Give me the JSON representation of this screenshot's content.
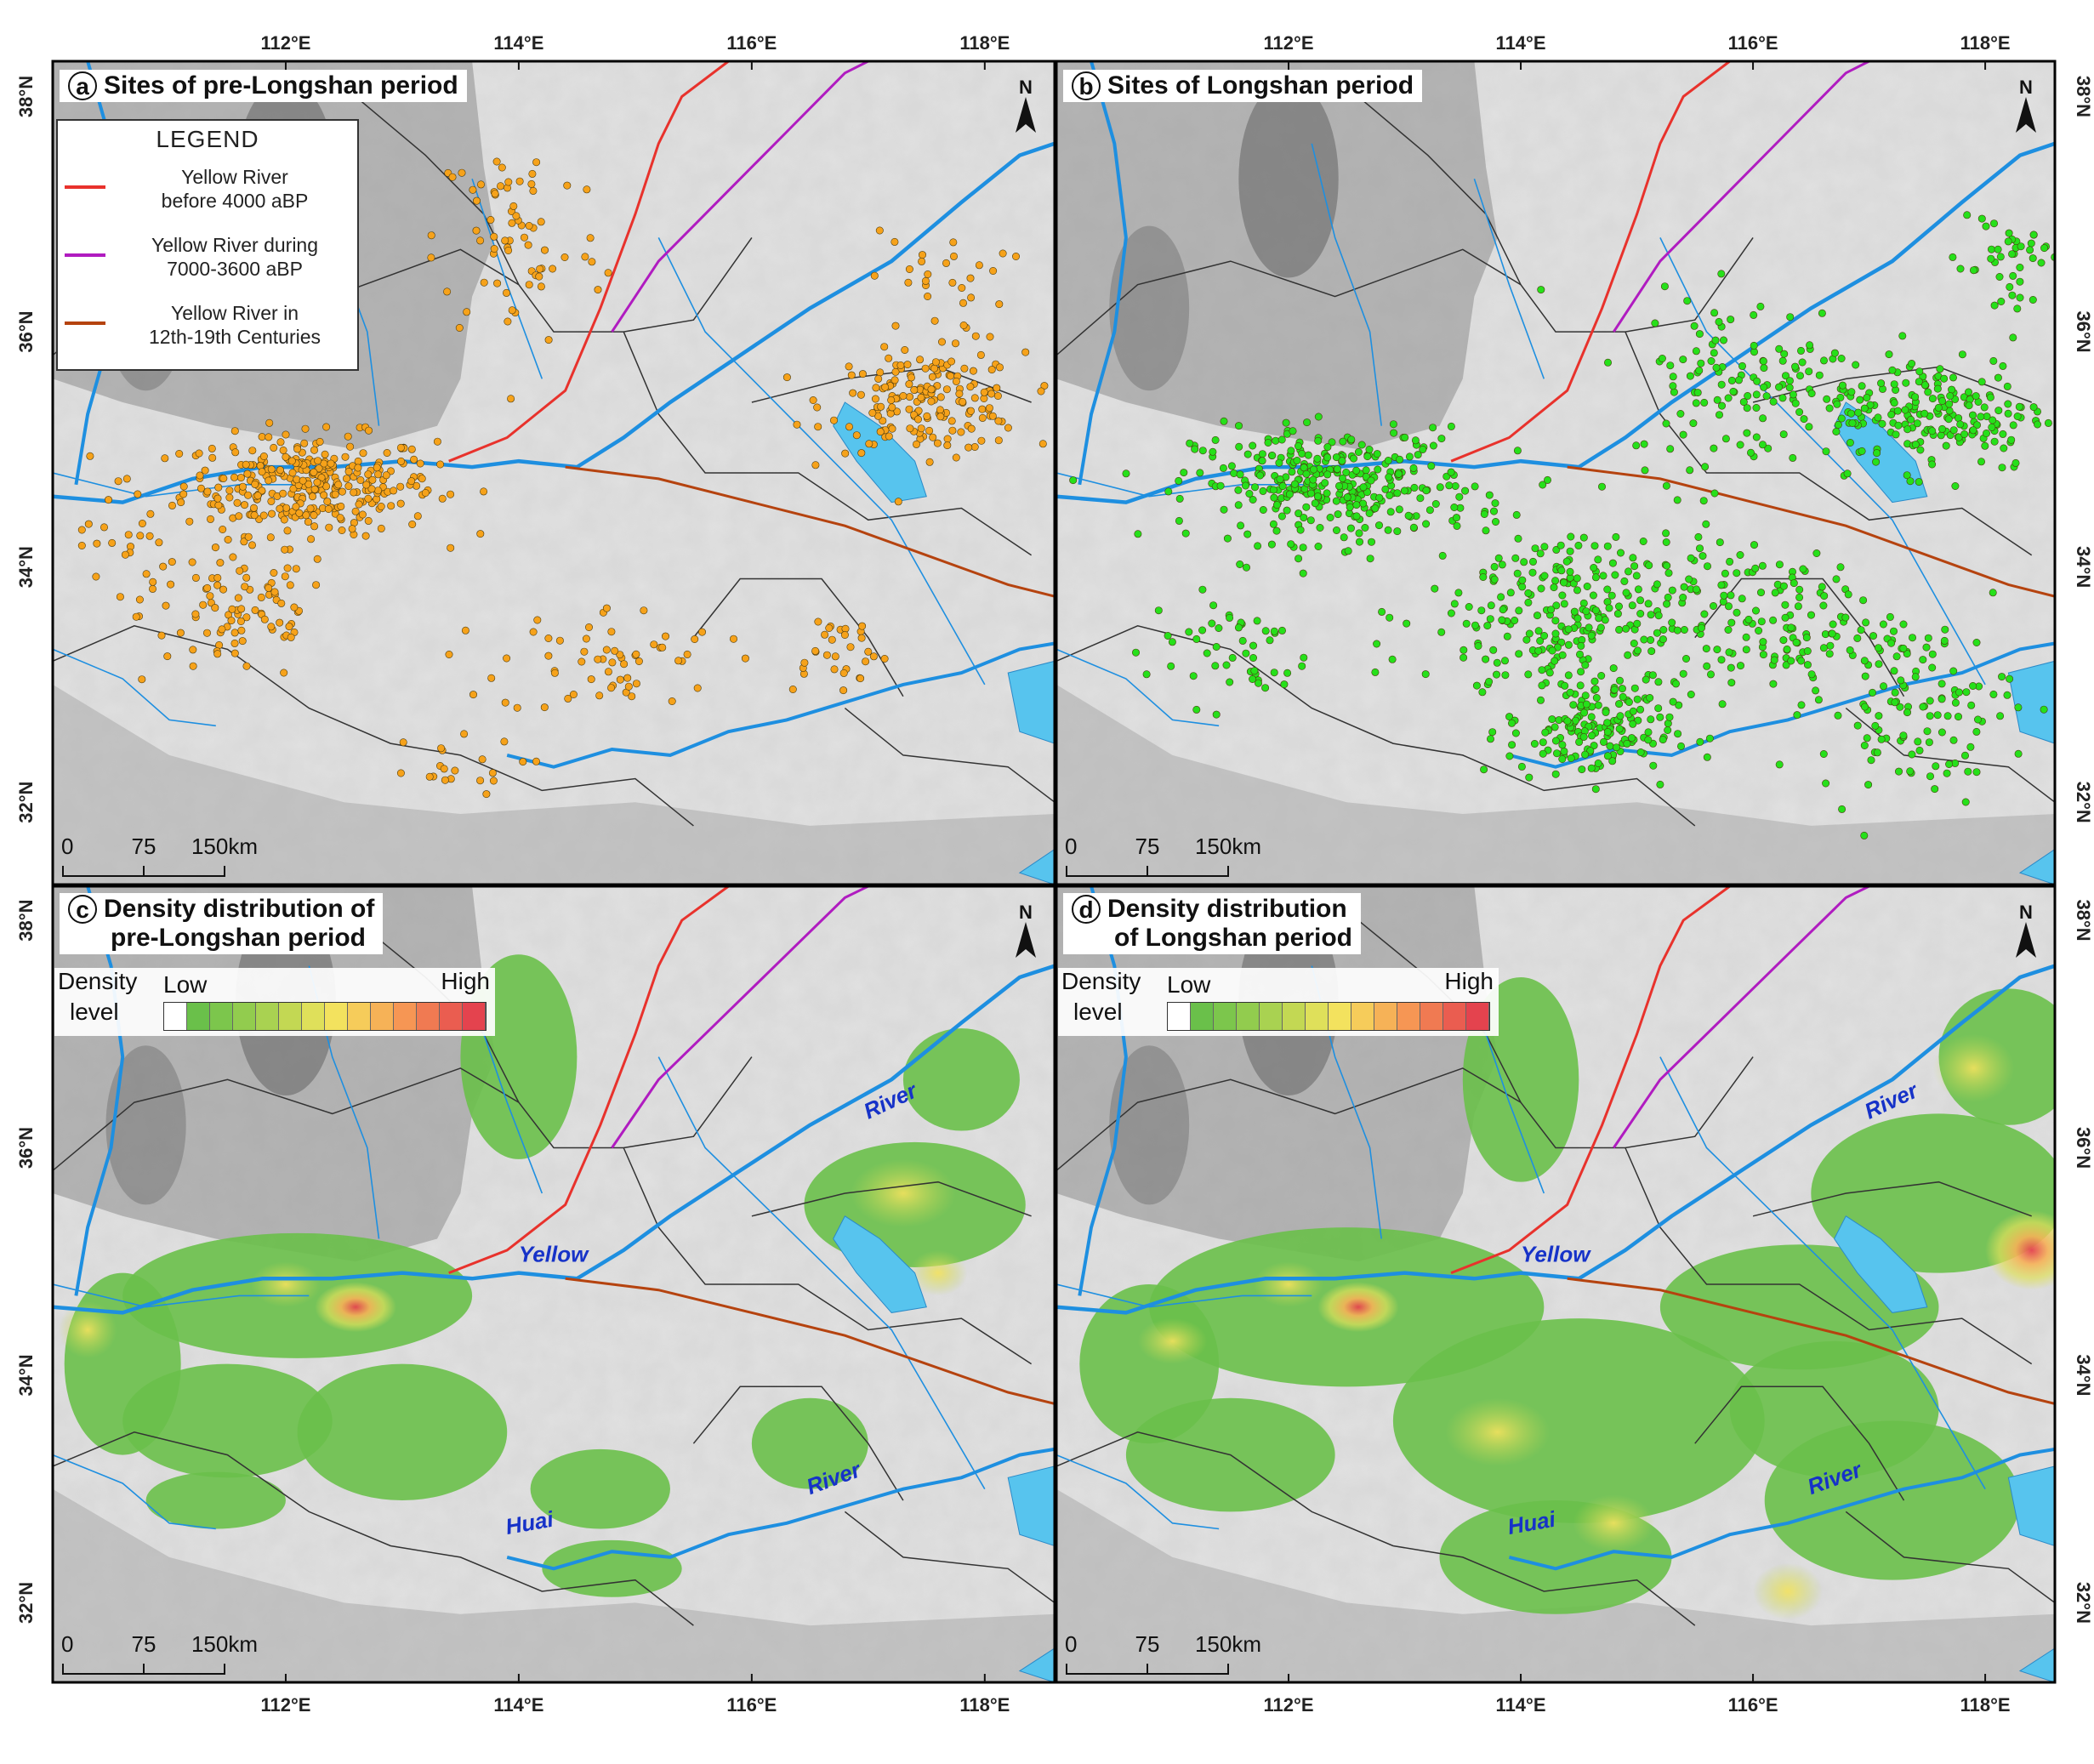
{
  "axes": {
    "lon_labels": [
      "112°E",
      "114°E",
      "116°E",
      "118°E"
    ],
    "lat_labels": [
      "38°N",
      "36°N",
      "34°N",
      "32°N"
    ]
  },
  "panels": [
    {
      "letter": "a",
      "title": "Sites of pre-Longshan period"
    },
    {
      "letter": "b",
      "title": "Sites of Longshan period"
    },
    {
      "letter": "c",
      "title_line1": "Density distribution of",
      "title_line2": "pre-Longshan period"
    },
    {
      "letter": "d",
      "title_line1": "Density  distribution",
      "title_line2": "of Longshan period"
    }
  ],
  "legend": {
    "heading": "LEGEND",
    "items": [
      {
        "line1": "Yellow River",
        "line2": "before 4000 aBP",
        "color": "#e8322c"
      },
      {
        "line1": "Yellow River during",
        "line2": "7000-3600 aBP",
        "color": "#b01cc0"
      },
      {
        "line1": "Yellow River in",
        "line2": "12th-19th Centuries",
        "color": "#b5430f"
      }
    ]
  },
  "density_legend": {
    "title_line1": "Density",
    "title_line2": "level",
    "low": "Low",
    "high": "High",
    "colors": [
      "#ffffff",
      "#6ac04a",
      "#7cc64c",
      "#92cc4e",
      "#a9d251",
      "#c3d853",
      "#dfe05a",
      "#f3e25e",
      "#f6cc5a",
      "#f6b257",
      "#f69654",
      "#f07a52",
      "#ea5d50",
      "#e4434e"
    ]
  },
  "scale_bar": {
    "labels": [
      "0",
      "75",
      "150km"
    ]
  },
  "north_label": "N",
  "river_labels": {
    "yellow": "Yellow",
    "river": "River",
    "huai": "Huai"
  },
  "colors": {
    "site_pre_longshan": "#f6a21a",
    "site_longshan": "#26e01a",
    "river_blue": "#1e8fe0",
    "lake": "#57c4ee",
    "terrain": "#d9d9d9",
    "density_low": "#6ac04a",
    "density_high": "#e4434e"
  }
}
